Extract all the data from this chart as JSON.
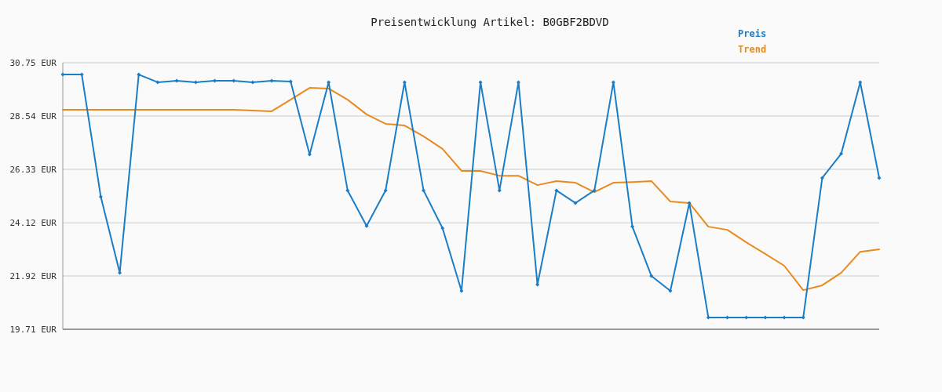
{
  "chart_data": {
    "type": "line",
    "title": "Preisentwicklung Artikel: B0GBF2BDVD",
    "categories": [
      null,
      null,
      null,
      null,
      null,
      null,
      null,
      null,
      null,
      null,
      null,
      null,
      null,
      null,
      null,
      null,
      null,
      null,
      null,
      null,
      null,
      null,
      null,
      null,
      null,
      null,
      null,
      null,
      null,
      null,
      null,
      null,
      null,
      null,
      null,
      null,
      null,
      null,
      null,
      null,
      null,
      null,
      null,
      null
    ],
    "series": [
      {
        "name": "Preis",
        "color": "#1a7dc6",
        "marker": "diamond",
        "values": [
          30.26,
          30.26,
          25.2,
          22.05,
          30.26,
          29.94,
          30.0,
          29.94,
          30.0,
          30.0,
          29.94,
          30.0,
          29.97,
          26.95,
          29.94,
          25.46,
          23.99,
          25.46,
          29.94,
          25.46,
          23.9,
          21.3,
          29.94,
          25.46,
          29.94,
          21.56,
          25.46,
          24.94,
          25.46,
          29.94,
          23.96,
          21.92,
          21.3,
          24.94,
          20.2,
          20.2,
          20.2,
          20.2,
          20.2,
          20.2,
          25.98,
          26.98,
          29.94,
          25.98
        ]
      },
      {
        "name": "Trend",
        "color": "#e88a1e",
        "marker": "none",
        "values": [
          28.8,
          28.8,
          28.8,
          28.8,
          28.8,
          28.8,
          28.8,
          28.8,
          28.8,
          28.8,
          28.77,
          28.74,
          29.22,
          29.71,
          29.68,
          29.22,
          28.61,
          28.22,
          28.15,
          27.7,
          27.18,
          26.27,
          26.27,
          26.07,
          26.07,
          25.68,
          25.85,
          25.78,
          25.39,
          25.78,
          25.81,
          25.85,
          25.0,
          24.94,
          23.96,
          23.83,
          23.31,
          22.83,
          22.34,
          21.33,
          21.53,
          22.05,
          22.92,
          23.02
        ]
      }
    ],
    "ylim": [
      19.71,
      30.75
    ],
    "yticks": [
      {
        "value": 19.71,
        "label": "19.71 EUR"
      },
      {
        "value": 21.92,
        "label": "21.92 EUR"
      },
      {
        "value": 24.12,
        "label": "24.12 EUR"
      },
      {
        "value": 26.33,
        "label": "26.33 EUR"
      },
      {
        "value": 28.54,
        "label": "28.54 EUR"
      },
      {
        "value": 30.75,
        "label": "30.75 EUR"
      }
    ],
    "grid": "y",
    "legend": "top right",
    "line_style": "solid"
  }
}
